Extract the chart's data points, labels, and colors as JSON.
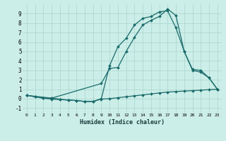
{
  "xlabel": "Humidex (Indice chaleur)",
  "bg_color": "#cceee8",
  "grid_color": "#aad4ce",
  "line_color": "#1a6b6b",
  "marker": "D",
  "marker_size": 2,
  "xlim": [
    -0.5,
    23.5
  ],
  "ylim": [
    -1.5,
    10.0
  ],
  "xticks": [
    0,
    1,
    2,
    3,
    4,
    5,
    6,
    7,
    8,
    9,
    10,
    11,
    12,
    13,
    14,
    15,
    16,
    17,
    18,
    19,
    20,
    21,
    22,
    23
  ],
  "yticks": [
    -1,
    0,
    1,
    2,
    3,
    4,
    5,
    6,
    7,
    8,
    9
  ],
  "line1_x": [
    0,
    1,
    2,
    3,
    4,
    5,
    6,
    7,
    8,
    9,
    10,
    11,
    12,
    13,
    14,
    15,
    16,
    17,
    18,
    19,
    20,
    21,
    22,
    23
  ],
  "line1_y": [
    0.35,
    0.2,
    0.05,
    -0.05,
    -0.1,
    -0.15,
    -0.2,
    -0.3,
    -0.3,
    -0.05,
    0.0,
    0.1,
    0.2,
    0.3,
    0.4,
    0.5,
    0.6,
    0.7,
    0.75,
    0.8,
    0.85,
    0.9,
    0.95,
    1.0
  ],
  "line2_x": [
    0,
    1,
    2,
    3,
    4,
    5,
    6,
    7,
    8,
    9,
    10,
    11,
    12,
    13,
    14,
    15,
    16,
    17,
    18,
    19,
    20,
    21,
    22,
    23
  ],
  "line2_y": [
    0.35,
    0.2,
    0.05,
    0.05,
    -0.05,
    -0.15,
    -0.2,
    -0.3,
    -0.3,
    0.0,
    3.5,
    5.5,
    6.4,
    7.8,
    8.5,
    8.7,
    9.2,
    9.3,
    7.5,
    5.0,
    3.0,
    2.8,
    2.2,
    1.0
  ],
  "line3_x": [
    0,
    3,
    9,
    10,
    11,
    12,
    13,
    14,
    15,
    16,
    17,
    18,
    19,
    20,
    21,
    22,
    23
  ],
  "line3_y": [
    0.35,
    0.05,
    1.6,
    3.2,
    3.3,
    5.0,
    6.5,
    7.8,
    8.3,
    8.7,
    9.5,
    8.8,
    5.0,
    3.1,
    3.0,
    2.2,
    1.0
  ]
}
